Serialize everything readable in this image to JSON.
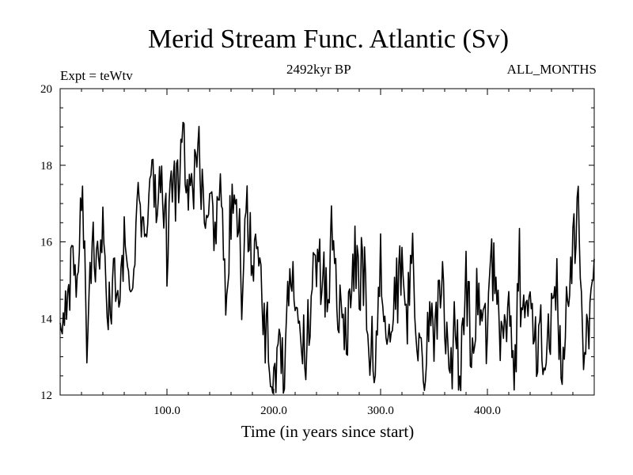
{
  "chart_data": {
    "type": "line",
    "title": "Merid Stream Func. Atlantic (Sv)",
    "subtitle_left": "Expt = teWtv",
    "subtitle_center": "2492kyr BP",
    "subtitle_right": "ALL_MONTHS",
    "xlabel": "Time (in years since start)",
    "ylabel": "",
    "xlim": [
      0,
      500
    ],
    "ylim": [
      12,
      20
    ],
    "xticks": [
      100,
      200,
      300,
      400
    ],
    "xtick_labels": [
      "100.0",
      "200.0",
      "300.0",
      "400.0"
    ],
    "yticks": [
      12,
      14,
      16,
      18,
      20
    ],
    "ytick_labels": [
      "12",
      "14",
      "16",
      "18",
      "20"
    ],
    "grid": false,
    "series": [
      {
        "name": "Merid Stream Func. Atlantic",
        "color": "#000000",
        "x": [
          0,
          5,
          10,
          15,
          20,
          25,
          30,
          35,
          40,
          45,
          50,
          55,
          60,
          65,
          70,
          75,
          80,
          85,
          90,
          95,
          100,
          105,
          110,
          115,
          120,
          125,
          130,
          135,
          140,
          145,
          150,
          155,
          160,
          165,
          170,
          175,
          180,
          185,
          190,
          195,
          200,
          205,
          210,
          215,
          220,
          225,
          230,
          235,
          240,
          245,
          250,
          255,
          260,
          265,
          270,
          275,
          280,
          285,
          290,
          295,
          300,
          305,
          310,
          315,
          320,
          325,
          330,
          335,
          340,
          345,
          350,
          355,
          360,
          365,
          370,
          375,
          380,
          385,
          390,
          395,
          400,
          405,
          410,
          415,
          420,
          425,
          430,
          435,
          440,
          445,
          450,
          455,
          460,
          465,
          470,
          475,
          480,
          485,
          490,
          495,
          500
        ],
        "values": [
          14.6,
          14.0,
          15.5,
          14.7,
          17.3,
          13.8,
          15.9,
          15.0,
          16.5,
          14.2,
          15.4,
          14.5,
          16.2,
          15.1,
          15.9,
          17.1,
          16.4,
          18.2,
          16.8,
          17.5,
          15.8,
          17.4,
          17.9,
          18.9,
          17.6,
          17.2,
          18.1,
          16.9,
          17.5,
          16.3,
          17.4,
          15.1,
          16.6,
          17.6,
          14.6,
          16.9,
          15.4,
          16.2,
          13.9,
          13.2,
          12.6,
          13.5,
          12.5,
          15.4,
          14.7,
          13.5,
          13.1,
          14.2,
          15.5,
          15.2,
          14.8,
          16.4,
          14.5,
          14.2,
          13.7,
          15.6,
          15.1,
          15.3,
          13.4,
          12.9,
          15.2,
          14.0,
          13.5,
          14.9,
          15.1,
          14.0,
          16.1,
          13.2,
          12.6,
          13.7,
          13.4,
          14.8,
          14.1,
          13.0,
          13.6,
          12.8,
          15.1,
          13.3,
          14.4,
          14.2,
          13.9,
          15.6,
          14.0,
          13.3,
          14.2,
          12.4,
          15.2,
          13.8,
          14.1,
          13.4,
          13.6,
          13.1,
          14.2,
          14.5,
          13.0,
          14.9,
          15.8,
          16.9,
          13.2,
          14.3,
          15.0
        ]
      }
    ]
  }
}
